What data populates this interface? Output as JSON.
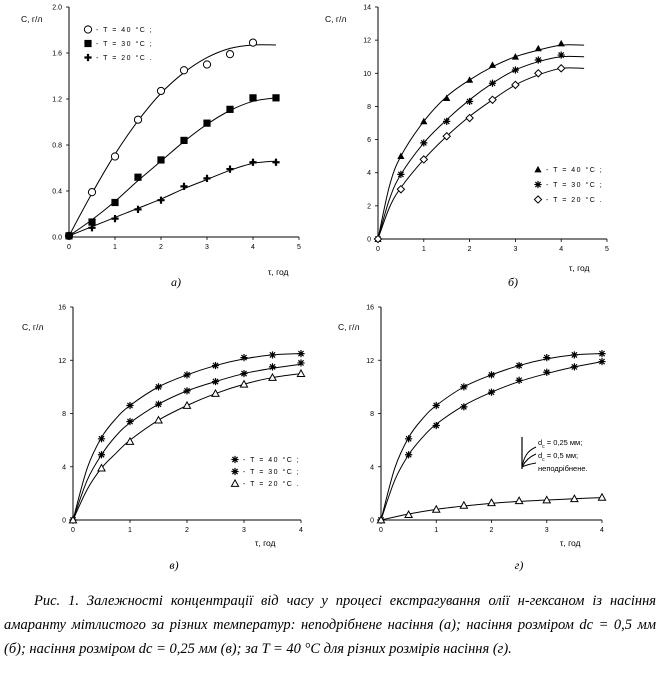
{
  "chart_data": [
    {
      "type": "line",
      "panel_label": "а)",
      "ylabel": "С, г/л",
      "xlabel": "τ, год",
      "xlim": [
        0,
        5
      ],
      "ylim": [
        0,
        2.0
      ],
      "xticks": [
        0,
        1,
        2,
        3,
        4,
        5
      ],
      "yticks": [
        0.0,
        0.4,
        0.8,
        1.2,
        1.6,
        2.0
      ],
      "ytick_labels": [
        "0.0",
        "0.4",
        "0.8",
        "1.2",
        "1.6",
        "2.0"
      ],
      "legend_position": "top-left",
      "series": [
        {
          "name": "- T = 40 °C ;",
          "marker": "circle-open",
          "x": [
            0,
            0.5,
            1,
            1.5,
            2,
            2.5,
            3,
            3.5,
            4
          ],
          "y": [
            0.01,
            0.39,
            0.7,
            1.02,
            1.27,
            1.45,
            1.5,
            1.59,
            1.69
          ],
          "fit_x": [
            0,
            0.5,
            1,
            1.5,
            2,
            2.5,
            3,
            3.5,
            4,
            4.5
          ],
          "fit_y": [
            0.01,
            0.38,
            0.72,
            1.01,
            1.25,
            1.43,
            1.56,
            1.64,
            1.67,
            1.67
          ]
        },
        {
          "name": "- T = 30 °C ;",
          "marker": "square-filled",
          "x": [
            0,
            0.5,
            1,
            1.5,
            2,
            2.5,
            3,
            3.5,
            4,
            4.5
          ],
          "y": [
            0.01,
            0.13,
            0.3,
            0.52,
            0.67,
            0.84,
            0.99,
            1.11,
            1.21,
            1.21
          ],
          "fit_x": [
            0,
            0.5,
            1,
            1.5,
            2,
            2.5,
            3,
            3.5,
            4,
            4.5
          ],
          "fit_y": [
            0.01,
            0.15,
            0.31,
            0.49,
            0.66,
            0.83,
            0.98,
            1.1,
            1.18,
            1.21
          ]
        },
        {
          "name": "- T = 20 °C .",
          "marker": "plus",
          "x": [
            0,
            0.5,
            1,
            1.5,
            2,
            2.5,
            3,
            3.5,
            4,
            4.5
          ],
          "y": [
            0.01,
            0.08,
            0.16,
            0.24,
            0.32,
            0.44,
            0.51,
            0.59,
            0.65,
            0.65
          ],
          "fit_x": [
            0,
            0.5,
            1,
            1.5,
            2,
            2.5,
            3,
            3.5,
            4,
            4.5
          ],
          "fit_y": [
            0.01,
            0.09,
            0.17,
            0.25,
            0.33,
            0.42,
            0.5,
            0.58,
            0.64,
            0.66
          ]
        }
      ]
    },
    {
      "type": "line",
      "panel_label": "б)",
      "ylabel": "С, г/л",
      "xlabel": "τ, год",
      "xlim": [
        0,
        5
      ],
      "ylim": [
        0,
        14
      ],
      "xticks": [
        0,
        1,
        2,
        3,
        4,
        5
      ],
      "yticks": [
        0,
        2,
        4,
        6,
        8,
        10,
        12,
        14
      ],
      "ytick_labels": [
        "0",
        "2",
        "4",
        "6",
        "8",
        "10",
        "12",
        "14"
      ],
      "legend_position": "bottom-right",
      "series": [
        {
          "name": "- T = 40 °C ;",
          "marker": "triangle-filled",
          "x": [
            0,
            0.5,
            1,
            1.5,
            2,
            2.5,
            3,
            3.5,
            4
          ],
          "y": [
            0,
            5.0,
            7.1,
            8.5,
            9.6,
            10.5,
            11.0,
            11.5,
            11.8
          ],
          "fit_x": [
            0,
            0.25,
            0.5,
            1,
            1.5,
            2,
            2.5,
            3,
            3.5,
            4,
            4.5
          ],
          "fit_y": [
            0,
            3.2,
            5.0,
            7.1,
            8.6,
            9.6,
            10.4,
            11.0,
            11.4,
            11.7,
            11.7
          ]
        },
        {
          "name": "- T = 30 °C ;",
          "marker": "star",
          "x": [
            0,
            0.5,
            1,
            1.5,
            2,
            2.5,
            3,
            3.5,
            4
          ],
          "y": [
            0,
            3.9,
            5.8,
            7.1,
            8.3,
            9.4,
            10.2,
            10.8,
            11.1
          ],
          "fit_x": [
            0,
            0.25,
            0.5,
            1,
            1.5,
            2,
            2.5,
            3,
            3.5,
            4,
            4.5
          ],
          "fit_y": [
            0,
            2.4,
            3.9,
            5.8,
            7.2,
            8.4,
            9.4,
            10.2,
            10.7,
            11.0,
            11.0
          ]
        },
        {
          "name": "- T = 20 °C .",
          "marker": "diamond-open",
          "x": [
            0,
            0.5,
            1,
            1.5,
            2,
            2.5,
            3,
            3.5,
            4
          ],
          "y": [
            0,
            3.0,
            4.8,
            6.2,
            7.3,
            8.4,
            9.3,
            10.0,
            10.3
          ],
          "fit_x": [
            0,
            0.25,
            0.5,
            1,
            1.5,
            2,
            2.5,
            3,
            3.5,
            4,
            4.5
          ],
          "fit_y": [
            0,
            1.9,
            3.1,
            4.8,
            6.2,
            7.4,
            8.4,
            9.3,
            9.9,
            10.3,
            10.3
          ]
        }
      ]
    },
    {
      "type": "line",
      "panel_label": "в)",
      "ylabel": "С, г/л",
      "xlabel": "τ, год",
      "xlim": [
        0,
        4
      ],
      "ylim": [
        0,
        16
      ],
      "xticks": [
        0,
        1,
        2,
        3,
        4
      ],
      "yticks": [
        0,
        4,
        8,
        12,
        16
      ],
      "ytick_labels": [
        "0",
        "4",
        "8",
        "12",
        "16"
      ],
      "legend_position": "bottom-right",
      "series": [
        {
          "name": "- T = 40 °C ;",
          "marker": "star",
          "x": [
            0,
            0.5,
            1,
            1.5,
            2,
            2.5,
            3,
            3.5,
            4
          ],
          "y": [
            0,
            6.1,
            8.6,
            10.0,
            10.9,
            11.6,
            12.2,
            12.4,
            12.5
          ],
          "fit_x": [
            0,
            0.25,
            0.5,
            0.75,
            1,
            1.5,
            2,
            2.5,
            3,
            3.5,
            4
          ],
          "fit_y": [
            0,
            3.9,
            6.2,
            7.6,
            8.6,
            10.0,
            10.9,
            11.6,
            12.1,
            12.4,
            12.5
          ]
        },
        {
          "name": "- T = 30 °C ;",
          "marker": "star",
          "x": [
            0,
            0.5,
            1,
            1.5,
            2,
            2.5,
            3,
            3.5,
            4
          ],
          "y": [
            0,
            4.9,
            7.4,
            8.7,
            9.7,
            10.4,
            11.0,
            11.5,
            11.8
          ],
          "fit_x": [
            0,
            0.25,
            0.5,
            0.75,
            1,
            1.5,
            2,
            2.5,
            3,
            3.5,
            4
          ],
          "fit_y": [
            0,
            3.0,
            4.9,
            6.3,
            7.3,
            8.7,
            9.7,
            10.4,
            11.0,
            11.4,
            11.7
          ]
        },
        {
          "name": "- T = 20 °C .",
          "marker": "triangle-open",
          "x": [
            0,
            0.5,
            1,
            1.5,
            2,
            2.5,
            3,
            3.5,
            4
          ],
          "y": [
            0,
            3.9,
            5.9,
            7.5,
            8.6,
            9.5,
            10.2,
            10.7,
            11.0
          ],
          "fit_x": [
            0,
            0.25,
            0.5,
            0.75,
            1,
            1.5,
            2,
            2.5,
            3,
            3.5,
            4
          ],
          "fit_y": [
            0,
            2.3,
            3.9,
            5.0,
            6.0,
            7.5,
            8.6,
            9.5,
            10.2,
            10.7,
            11.0
          ]
        }
      ]
    },
    {
      "type": "line",
      "panel_label": "г)",
      "ylabel": "С, г/л",
      "xlabel": "τ, год",
      "xlim": [
        0,
        4
      ],
      "ylim": [
        0,
        16
      ],
      "xticks": [
        0,
        1,
        2,
        3,
        4
      ],
      "yticks": [
        0,
        4,
        8,
        12,
        16
      ],
      "ytick_labels": [
        "0",
        "4",
        "8",
        "12",
        "16"
      ],
      "legend_position": "center-right",
      "series": [
        {
          "name_main": "d",
          "name_sub": "c",
          "name_rest": " = 0,25 мм;",
          "marker": "star",
          "x": [
            0,
            0.5,
            1,
            1.5,
            2,
            2.5,
            3,
            3.5,
            4
          ],
          "y": [
            0,
            6.1,
            8.6,
            10.0,
            10.9,
            11.6,
            12.2,
            12.4,
            12.5
          ],
          "fit_x": [
            0,
            0.25,
            0.5,
            0.75,
            1,
            1.5,
            2,
            2.5,
            3,
            3.5,
            4
          ],
          "fit_y": [
            0,
            3.9,
            6.2,
            7.6,
            8.6,
            10.0,
            10.9,
            11.6,
            12.1,
            12.4,
            12.5
          ]
        },
        {
          "name_main": "d",
          "name_sub": "c",
          "name_rest": " = 0,5 мм;",
          "marker": "star",
          "x": [
            0,
            0.5,
            1,
            1.5,
            2,
            2.5,
            3,
            3.5,
            4
          ],
          "y": [
            0,
            4.9,
            7.1,
            8.5,
            9.6,
            10.5,
            11.1,
            11.5,
            11.9
          ],
          "fit_x": [
            0,
            0.25,
            0.5,
            0.75,
            1,
            1.5,
            2,
            2.5,
            3,
            3.5,
            4
          ],
          "fit_y": [
            0,
            3.0,
            4.9,
            6.2,
            7.2,
            8.6,
            9.6,
            10.4,
            11.0,
            11.5,
            11.9
          ]
        },
        {
          "name_main": "",
          "name_sub": "",
          "name_rest": "неподрібнене.",
          "marker": "triangle-open",
          "x": [
            0,
            0.5,
            1,
            1.5,
            2,
            2.5,
            3,
            3.5,
            4
          ],
          "y": [
            0,
            0.4,
            0.8,
            1.1,
            1.3,
            1.45,
            1.5,
            1.6,
            1.7
          ],
          "fit_x": [
            0,
            0.5,
            1,
            1.5,
            2,
            2.5,
            3,
            3.5,
            4
          ],
          "fit_y": [
            0,
            0.45,
            0.8,
            1.05,
            1.25,
            1.4,
            1.5,
            1.6,
            1.68
          ]
        }
      ]
    }
  ],
  "caption": "Рис. 1. Залежності концентрації від часу у процесі екстрагування олії н-гексаном із насіння амаранту мітлистого за різних температур: неподрібнене насіння (а); насіння розміром  dc = 0,5 мм (б); насіння розміром dc = 0,25 мм (в); за T = 40 °C для різних розмірів насіння (г)."
}
